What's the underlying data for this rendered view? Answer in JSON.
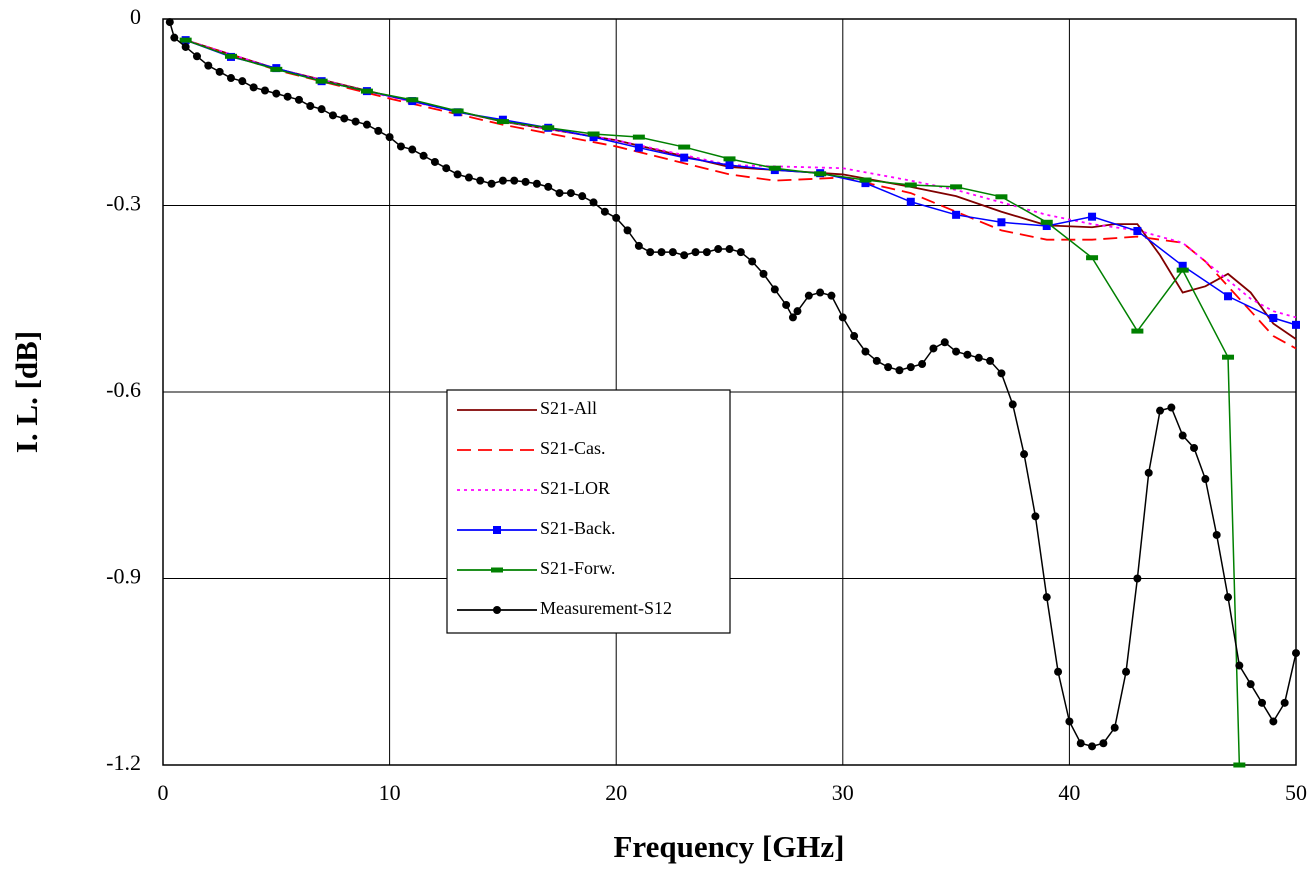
{
  "chart_data": {
    "type": "line",
    "xlabel": "Frequency [GHz]",
    "ylabel": "I. L. [dB]",
    "xlim": [
      0,
      50
    ],
    "ylim": [
      -1.2,
      0
    ],
    "xticks": [
      0,
      10,
      20,
      30,
      40,
      50
    ],
    "yticks": [
      0,
      -0.3,
      -0.6,
      -0.9,
      -1.2
    ],
    "grid": true,
    "legend": "center",
    "series": [
      {
        "name": "S21-All",
        "color": "#800000",
        "dash": "solid",
        "marker": "none",
        "x": [
          1,
          5,
          10,
          15,
          20,
          25,
          30,
          33,
          35,
          37,
          39,
          41,
          42,
          43,
          44,
          45,
          46,
          47,
          48,
          49,
          50
        ],
        "values": [
          -0.034,
          -0.08,
          -0.124,
          -0.165,
          -0.195,
          -0.238,
          -0.25,
          -0.27,
          -0.285,
          -0.31,
          -0.332,
          -0.335,
          -0.33,
          -0.33,
          -0.38,
          -0.44,
          -0.43,
          -0.41,
          -0.44,
          -0.49,
          -0.515
        ]
      },
      {
        "name": "S21-Cas.",
        "color": "#ff0000",
        "dash": "dashed",
        "marker": "none",
        "x": [
          1,
          5,
          10,
          15,
          20,
          25,
          27,
          30,
          33,
          35,
          37,
          39,
          41,
          43,
          45,
          46,
          47,
          48,
          49,
          50
        ],
        "values": [
          -0.034,
          -0.082,
          -0.128,
          -0.17,
          -0.205,
          -0.25,
          -0.26,
          -0.255,
          -0.28,
          -0.31,
          -0.34,
          -0.355,
          -0.355,
          -0.35,
          -0.36,
          -0.39,
          -0.43,
          -0.47,
          -0.51,
          -0.53
        ]
      },
      {
        "name": "S21-LOR",
        "color": "#ff00ff",
        "dash": "dotted",
        "marker": "none",
        "x": [
          1,
          5,
          10,
          15,
          20,
          25,
          30,
          33,
          35,
          37,
          39,
          41,
          43,
          45,
          46,
          47,
          48,
          49,
          50
        ],
        "values": [
          -0.034,
          -0.08,
          -0.125,
          -0.165,
          -0.195,
          -0.235,
          -0.24,
          -0.26,
          -0.275,
          -0.295,
          -0.315,
          -0.33,
          -0.34,
          -0.36,
          -0.39,
          -0.42,
          -0.45,
          -0.47,
          -0.48
        ]
      },
      {
        "name": "S21-Back.",
        "color": "#0000ff",
        "dash": "solid",
        "marker": "square",
        "x": [
          1,
          3,
          5,
          7,
          9,
          11,
          13,
          15,
          17,
          19,
          21,
          23,
          25,
          27,
          29,
          31,
          33,
          35,
          37,
          39,
          41,
          43,
          45,
          47,
          49,
          50
        ],
        "values": [
          -0.034,
          -0.061,
          -0.079,
          -0.1,
          -0.116,
          -0.132,
          -0.15,
          -0.162,
          -0.175,
          -0.19,
          -0.207,
          -0.223,
          -0.235,
          -0.243,
          -0.248,
          -0.264,
          -0.294,
          -0.315,
          -0.327,
          -0.333,
          -0.318,
          -0.341,
          -0.397,
          -0.446,
          -0.481,
          -0.492
        ]
      },
      {
        "name": "S21-Forw.",
        "color": "#008000",
        "dash": "solid",
        "marker": "dash",
        "x": [
          1,
          3,
          5,
          7,
          9,
          11,
          13,
          15,
          17,
          19,
          21,
          23,
          25,
          27,
          29,
          31,
          33,
          35,
          37,
          39,
          41,
          43,
          45,
          47,
          47.5
        ],
        "values": [
          -0.034,
          -0.06,
          -0.081,
          -0.1,
          -0.116,
          -0.13,
          -0.148,
          -0.165,
          -0.175,
          -0.185,
          -0.19,
          -0.206,
          -0.225,
          -0.24,
          -0.249,
          -0.259,
          -0.267,
          -0.27,
          -0.286,
          -0.327,
          -0.384,
          -0.502,
          -0.404,
          -0.544,
          -1.2
        ]
      },
      {
        "name": "Measurement-S12",
        "color": "#000000",
        "dash": "solid",
        "marker": "circle",
        "x": [
          0.3,
          0.5,
          1,
          1.5,
          2,
          2.5,
          3,
          3.5,
          4,
          4.5,
          5,
          5.5,
          6,
          6.5,
          7,
          7.5,
          8,
          8.5,
          9,
          9.5,
          10,
          10.5,
          11,
          11.5,
          12,
          12.5,
          13,
          13.5,
          14,
          14.5,
          15,
          15.5,
          16,
          16.5,
          17,
          17.5,
          18,
          18.5,
          19,
          19.5,
          20,
          20.5,
          21,
          21.5,
          22,
          22.5,
          23,
          23.5,
          24,
          24.5,
          25,
          25.5,
          26,
          26.5,
          27,
          27.5,
          27.8,
          28,
          28.5,
          29,
          29.5,
          30,
          30.5,
          31,
          31.5,
          32,
          32.5,
          33,
          33.5,
          34,
          34.5,
          35,
          35.5,
          36,
          36.5,
          37,
          37.5,
          38,
          38.5,
          39,
          39.5,
          40,
          40.5,
          41,
          41.5,
          42,
          42.5,
          43,
          43.5,
          44,
          44.5,
          45,
          45.5,
          46,
          46.5,
          47,
          47.5,
          48,
          48.5,
          49,
          49.5,
          50
        ],
        "values": [
          -0.005,
          -0.03,
          -0.045,
          -0.06,
          -0.075,
          -0.085,
          -0.095,
          -0.1,
          -0.11,
          -0.115,
          -0.12,
          -0.125,
          -0.13,
          -0.14,
          -0.145,
          -0.155,
          -0.16,
          -0.165,
          -0.17,
          -0.18,
          -0.19,
          -0.205,
          -0.21,
          -0.22,
          -0.23,
          -0.24,
          -0.25,
          -0.255,
          -0.26,
          -0.265,
          -0.26,
          -0.26,
          -0.262,
          -0.265,
          -0.27,
          -0.28,
          -0.28,
          -0.285,
          -0.295,
          -0.31,
          -0.32,
          -0.34,
          -0.365,
          -0.375,
          -0.375,
          -0.375,
          -0.38,
          -0.375,
          -0.375,
          -0.37,
          -0.37,
          -0.375,
          -0.39,
          -0.41,
          -0.435,
          -0.46,
          -0.48,
          -0.47,
          -0.445,
          -0.44,
          -0.445,
          -0.48,
          -0.51,
          -0.535,
          -0.55,
          -0.56,
          -0.565,
          -0.56,
          -0.555,
          -0.53,
          -0.52,
          -0.535,
          -0.54,
          -0.545,
          -0.55,
          -0.57,
          -0.62,
          -0.7,
          -0.8,
          -0.93,
          -1.05,
          -1.13,
          -1.165,
          -1.17,
          -1.165,
          -1.14,
          -1.05,
          -0.9,
          -0.73,
          -0.63,
          -0.625,
          -0.67,
          -0.69,
          -0.74,
          -0.83,
          -0.93,
          -1.04,
          -1.07,
          -1.1,
          -1.13,
          -1.1,
          -1.02
        ]
      }
    ]
  }
}
